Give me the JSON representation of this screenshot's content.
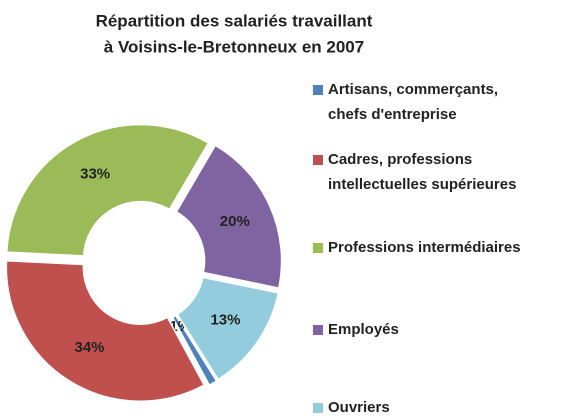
{
  "chart_data": {
    "type": "donut",
    "title": [
      "Répartition des salariés travaillant",
      "à Voisins-le-Bretonneux en 2007"
    ],
    "series": [
      {
        "name": "Artisans, commerçants, chefs d'entreprise",
        "color": "#4f81bd",
        "values": [
          1
        ],
        "value_labels": [
          "1%"
        ]
      },
      {
        "name": "Cadres, professions intellectuelles supérieures",
        "color": "#c0504d",
        "values": [
          34
        ],
        "value_labels": [
          "34%"
        ]
      },
      {
        "name": "Professions intermédiaires",
        "color": "#9bbb59",
        "values": [
          33
        ],
        "value_labels": [
          "33%"
        ]
      },
      {
        "name": "Employés",
        "color": "#8064a2",
        "values": [
          20
        ],
        "value_labels": [
          "20%"
        ]
      },
      {
        "name": "Ouvriers",
        "color": "#93cddd",
        "values": [
          13
        ],
        "value_labels": [
          "13%"
        ]
      }
    ]
  }
}
